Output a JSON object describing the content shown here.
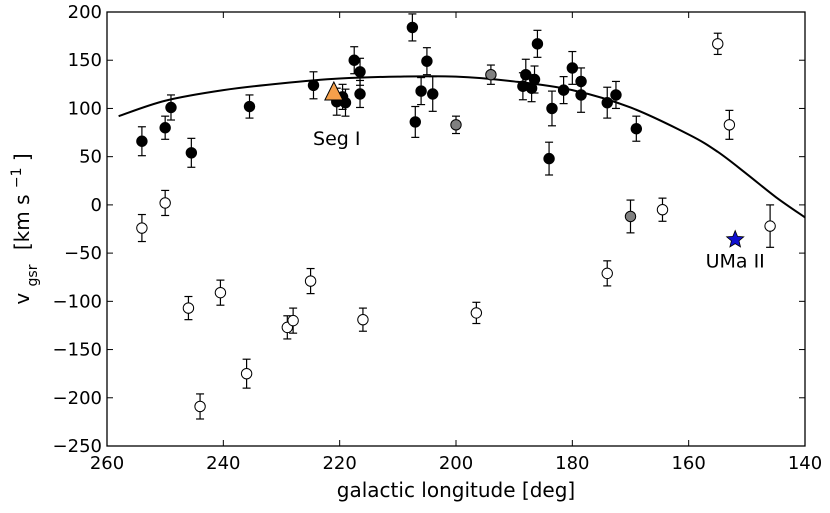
{
  "chart_data": {
    "type": "scatter",
    "title": "",
    "xlabel": "galactic longitude [deg]",
    "ylabel_main": "v",
    "ylabel_sub": "gsr",
    "ylabel_units_a": "[km s",
    "ylabel_units_exp": "−1",
    "ylabel_units_b": "]",
    "xlim": [
      260,
      140
    ],
    "ylim": [
      -250,
      200
    ],
    "x_ticks": [
      260,
      240,
      220,
      200,
      180,
      160,
      140
    ],
    "y_ticks": [
      200,
      150,
      100,
      50,
      0,
      -50,
      -100,
      -150,
      -200,
      -250
    ],
    "x_tick_labels": [
      "260",
      "240",
      "220",
      "200",
      "180",
      "160",
      "140"
    ],
    "y_tick_labels": [
      "200",
      "150",
      "100",
      "50",
      "0",
      "−50",
      "−100",
      "−150",
      "−200",
      "−250"
    ],
    "colors": {
      "filled": "#000000",
      "grey": "#808080",
      "open": "#ffffff",
      "curve": "#000000",
      "seg_triangle": "#f5a04b",
      "uma_star": "#1010d0"
    },
    "series": [
      {
        "name": "filled",
        "points": [
          {
            "x": 254,
            "y": 66,
            "err": 15
          },
          {
            "x": 250,
            "y": 80,
            "err": 12
          },
          {
            "x": 249,
            "y": 101,
            "err": 13
          },
          {
            "x": 245.5,
            "y": 54,
            "err": 15
          },
          {
            "x": 235.5,
            "y": 102,
            "err": 12
          },
          {
            "x": 224.5,
            "y": 124,
            "err": 14
          },
          {
            "x": 220.5,
            "y": 107,
            "err": 14
          },
          {
            "x": 219.5,
            "y": 112,
            "err": 13
          },
          {
            "x": 219,
            "y": 106,
            "err": 14
          },
          {
            "x": 217.5,
            "y": 150,
            "err": 14
          },
          {
            "x": 216.5,
            "y": 138,
            "err": 14
          },
          {
            "x": 216.5,
            "y": 115,
            "err": 14
          },
          {
            "x": 207.5,
            "y": 184,
            "err": 14
          },
          {
            "x": 207,
            "y": 86,
            "err": 16
          },
          {
            "x": 206,
            "y": 118,
            "err": 14
          },
          {
            "x": 205,
            "y": 149,
            "err": 14
          },
          {
            "x": 204,
            "y": 115,
            "err": 18
          },
          {
            "x": 188.5,
            "y": 123,
            "err": 14
          },
          {
            "x": 188,
            "y": 135,
            "err": 16
          },
          {
            "x": 187,
            "y": 121,
            "err": 14
          },
          {
            "x": 186.5,
            "y": 130,
            "err": 14
          },
          {
            "x": 186,
            "y": 167,
            "err": 14
          },
          {
            "x": 184,
            "y": 48,
            "err": 17
          },
          {
            "x": 183.5,
            "y": 100,
            "err": 18
          },
          {
            "x": 181.5,
            "y": 119,
            "err": 14
          },
          {
            "x": 180,
            "y": 142,
            "err": 17
          },
          {
            "x": 178.5,
            "y": 128,
            "err": 14
          },
          {
            "x": 178.5,
            "y": 114,
            "err": 18
          },
          {
            "x": 174,
            "y": 106,
            "err": 16
          },
          {
            "x": 172.5,
            "y": 114,
            "err": 14
          },
          {
            "x": 169,
            "y": 79,
            "err": 13
          }
        ]
      },
      {
        "name": "grey",
        "points": [
          {
            "x": 200,
            "y": 83,
            "err": 9
          },
          {
            "x": 194,
            "y": 135,
            "err": 10
          },
          {
            "x": 170,
            "y": -12,
            "err": 17
          }
        ]
      },
      {
        "name": "open",
        "points": [
          {
            "x": 254,
            "y": -24,
            "err": 14
          },
          {
            "x": 250,
            "y": 2,
            "err": 13
          },
          {
            "x": 246,
            "y": -107,
            "err": 12
          },
          {
            "x": 244,
            "y": -209,
            "err": 13
          },
          {
            "x": 240.5,
            "y": -91,
            "err": 13
          },
          {
            "x": 236,
            "y": -175,
            "err": 15
          },
          {
            "x": 229,
            "y": -127,
            "err": 12
          },
          {
            "x": 228,
            "y": -120,
            "err": 13
          },
          {
            "x": 225,
            "y": -79,
            "err": 13
          },
          {
            "x": 216,
            "y": -119,
            "err": 12
          },
          {
            "x": 196.5,
            "y": -112,
            "err": 11
          },
          {
            "x": 174,
            "y": -71,
            "err": 13
          },
          {
            "x": 164.5,
            "y": -5,
            "err": 12
          },
          {
            "x": 155,
            "y": 167,
            "err": 11
          },
          {
            "x": 153,
            "y": 83,
            "err": 15
          },
          {
            "x": 146,
            "y": -22,
            "err": 22
          }
        ]
      }
    ],
    "curve": {
      "name": "model",
      "x": [
        258,
        250,
        240,
        230,
        220,
        210,
        200,
        190,
        180,
        170,
        160,
        155,
        150,
        145,
        140
      ],
      "y": [
        92,
        108,
        119,
        126,
        131,
        133,
        133,
        128,
        119,
        101,
        73,
        55,
        32,
        8,
        -13
      ]
    },
    "annotations": [
      {
        "text": "Seg I",
        "x": 220.5,
        "y": 62,
        "marker": "triangle",
        "marker_x": 221,
        "marker_y": 116
      },
      {
        "text": "UMa II",
        "x": 152,
        "y": -65,
        "marker": "star",
        "marker_x": 152,
        "marker_y": -36
      }
    ]
  }
}
